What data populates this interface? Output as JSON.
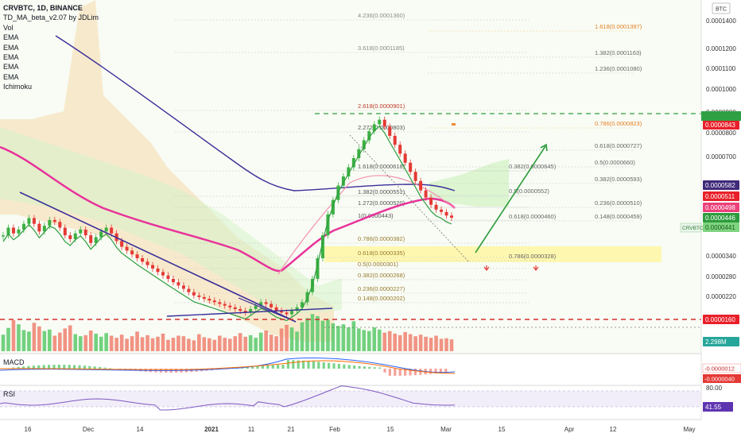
{
  "legend": {
    "title": "CRVBTC, 1D, BINANCE",
    "indicators": [
      "TD_MA_beta_v2.07 by JDLim",
      "Vol",
      "EMA",
      "EMA",
      "EMA",
      "EMA",
      "EMA",
      "Ichimoku"
    ]
  },
  "currency": "BTC",
  "price_axis": {
    "ticks": [
      "0.0001400",
      "0.0001200",
      "0.0001100",
      "0.0001000",
      "0.0000900",
      "0.0000800",
      "0.0000700",
      "0.0000340",
      "0.0000280",
      "0.0000220"
    ]
  },
  "price_badges": [
    {
      "text": "0.0000843",
      "bg": "#e8202a",
      "fg": "#ffffff"
    },
    {
      "text": "0.0000582",
      "bg": "#3f2a7a",
      "fg": "#ffffff"
    },
    {
      "text": "0.0000511",
      "bg": "#e8202a",
      "fg": "#ffffff"
    },
    {
      "text": "0.0000498",
      "bg": "#ec407a",
      "fg": "#ffffff"
    },
    {
      "text": "0.0000446",
      "bg": "#2e9c3e",
      "fg": "#ffffff"
    },
    {
      "text": "0.0000441",
      "bg": "#7fd47f",
      "fg": "#1b5e20"
    },
    {
      "text": "0.0000160",
      "bg": "#e8202a",
      "fg": "#ffffff"
    },
    {
      "text": "2.298M",
      "bg": "#26a69a",
      "fg": "#ffffff"
    }
  ],
  "symbol_tag": "CRVBTC",
  "time_axis": [
    "16",
    "Dec",
    "14",
    "2021",
    "11",
    "21",
    "Feb",
    "15",
    "Mar",
    "15",
    "Apr",
    "12",
    "May"
  ],
  "macd": {
    "label": "MACD",
    "badges": [
      "-0.0000012",
      "-0.0000040"
    ]
  },
  "rsi": {
    "label": "RSI",
    "ticks": [
      "80.00"
    ],
    "value": "41.55"
  },
  "fib_left": [
    {
      "ratio": "4.236",
      "price": "0.0001360"
    },
    {
      "ratio": "3.618",
      "price": "0.0001185"
    },
    {
      "ratio": "2.618",
      "price": "0.0000901"
    },
    {
      "ratio": "2.272",
      "price": "0.0000803"
    },
    {
      "ratio": "1.618",
      "price": "0.0000618"
    },
    {
      "ratio": "1.382",
      "price": "0.0000551"
    },
    {
      "ratio": "1.272",
      "price": "0.0000520"
    },
    {
      "ratio": "1",
      "price": "0.0000443"
    },
    {
      "ratio": "0.786",
      "price": "0.0000382"
    },
    {
      "ratio": "0.618",
      "price": "0.0000335"
    },
    {
      "ratio": "0.5",
      "price": "0.0000301"
    },
    {
      "ratio": "0.382",
      "price": "0.0000268"
    },
    {
      "ratio": "0.236",
      "price": "0.0000227"
    },
    {
      "ratio": "0.148",
      "price": "0.0000202"
    }
  ],
  "fib_right": [
    {
      "ratio": "1.618",
      "price": "0.0001397"
    },
    {
      "ratio": "1.382",
      "price": "0.0001163"
    },
    {
      "ratio": "1.236",
      "price": "0.0001080"
    },
    {
      "ratio": "0.786",
      "price": "0.0000823"
    },
    {
      "ratio": "0.618",
      "price": "0.0000727"
    },
    {
      "ratio": "0.5",
      "price": "0.0000660"
    },
    {
      "ratio": "0.382",
      "price": "0.0000645"
    },
    {
      "ratio": "0.382",
      "price": "0.0000593"
    },
    {
      "ratio": "0.5",
      "price": "0.0000552"
    },
    {
      "ratio": "0.236",
      "price": "0.0000510"
    },
    {
      "ratio": "0.618",
      "price": "0.0000460"
    },
    {
      "ratio": "0.148",
      "price": "0.0000459"
    },
    {
      "ratio": "0.786",
      "price": "0.0000328"
    }
  ],
  "chart_data": {
    "type": "candlestick",
    "title": "CRVBTC, 1D, BINANCE",
    "x_range": [
      "Nov 12, 2020",
      "Mar 2, 2021"
    ],
    "ohlc_close_approx": [
      4e-05,
      4.2e-05,
      4.05e-05,
      4.15e-05,
      4.3e-05,
      4.45e-05,
      4.3e-05,
      4.1e-05,
      4.25e-05,
      4.4e-05,
      4.35e-05,
      4.2e-05,
      4e-05,
      3.9e-05,
      4.05e-05,
      4.15e-05,
      4e-05,
      3.8e-05,
      3.95e-05,
      4.1e-05,
      4.2e-05,
      4.05e-05,
      3.85e-05,
      3.7e-05,
      3.6e-05,
      3.5e-05,
      3.4e-05,
      3.3e-05,
      3.2e-05,
      3.1e-05,
      3e-05,
      2.9e-05,
      2.8e-05,
      2.7e-05,
      2.6e-05,
      2.5e-05,
      2.4e-05,
      2.3e-05,
      2.25e-05,
      2.2e-05,
      2.15e-05,
      2.1e-05,
      2.05e-05,
      2e-05,
      1.95e-05,
      1.9e-05,
      1.85e-05,
      1.8e-05,
      1.9e-05,
      2e-05,
      2.1e-05,
      2.05e-05,
      1.95e-05,
      1.85e-05,
      1.8e-05,
      1.75e-05,
      1.85e-05,
      1.95e-05,
      2.1e-05,
      2.4e-05,
      2.8e-05,
      3.4e-05,
      4e-05,
      4.6e-05,
      5.2e-05,
      5.8e-05,
      6.2e-05,
      6.6e-05,
      7e-05,
      7.4e-05,
      7.8e-05,
      8.2e-05,
      8.5e-05,
      8.7e-05,
      8.4e-05,
      8e-05,
      7.6e-05,
      7.2e-05,
      6.8e-05,
      6.4e-05,
      6e-05,
      5.6e-05,
      5.3e-05,
      5e-05,
      4.8e-05,
      4.7e-05,
      4.55e-05,
      4.46e-05
    ],
    "volume_approx_M": [
      3.2,
      4.5,
      6.0,
      5.2,
      4.1,
      3.8,
      5.5,
      4.8,
      3.9,
      4.2,
      3.0,
      3.6,
      4.4,
      5.0,
      3.3,
      2.9,
      3.1,
      4.0,
      3.4,
      2.8,
      3.5,
      3.0,
      2.6,
      3.2,
      2.4,
      2.9,
      3.8,
      2.7,
      3.1,
      2.5,
      2.8,
      3.4,
      2.2,
      2.6,
      3.0,
      2.9,
      2.4,
      2.1,
      3.3,
      2.7,
      2.5,
      2.2,
      3.0,
      2.6,
      2.4,
      2.9,
      3.5,
      2.8,
      3.1,
      2.6,
      3.6,
      4.0,
      3.2,
      2.9,
      4.4,
      5.1,
      4.6,
      3.8,
      5.6,
      6.4,
      7.2,
      6.8,
      5.9,
      6.1,
      5.4,
      4.9,
      5.2,
      4.6,
      5.8,
      4.4,
      4.1,
      3.9,
      4.6,
      4.2,
      3.6,
      3.9,
      3.4,
      3.1,
      3.7,
      3.3,
      2.9,
      3.2,
      2.8,
      2.6,
      3.0,
      2.4,
      2.5,
      2.3
    ],
    "legend_placement": "top-left"
  }
}
